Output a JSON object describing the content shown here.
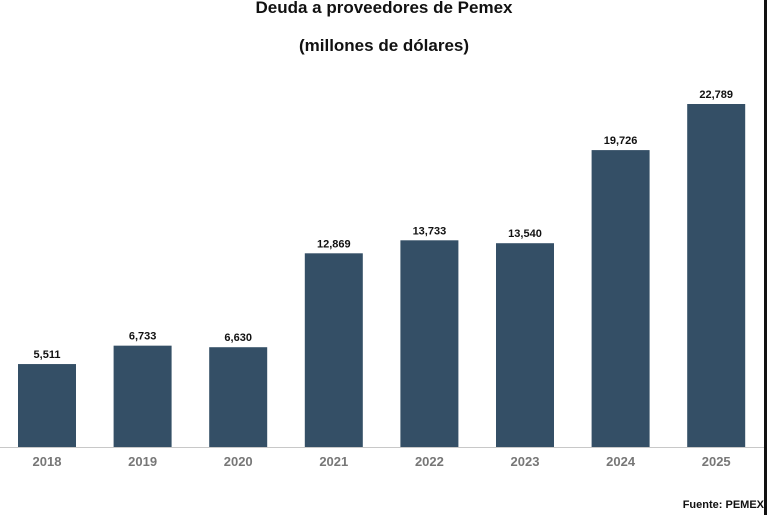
{
  "chart_data": {
    "type": "bar",
    "title": "Deuda a proveedores de Pemex",
    "subtitle": "(millones de dólares)",
    "categories": [
      "2018",
      "2019",
      "2020",
      "2021",
      "2022",
      "2023",
      "2024",
      "2025"
    ],
    "values": [
      5511,
      6733,
      6630,
      12869,
      13733,
      13540,
      19726,
      22789
    ],
    "labels": [
      "5,511",
      "6,733",
      "6,630",
      "12,869",
      "13,733",
      "13,540",
      "19,726",
      "22,789"
    ],
    "xlabel": "",
    "ylabel": "",
    "ylim": [
      0,
      22789
    ],
    "grid": false,
    "bar_color": "#344f66",
    "source": "Fuente: PEMEX"
  }
}
